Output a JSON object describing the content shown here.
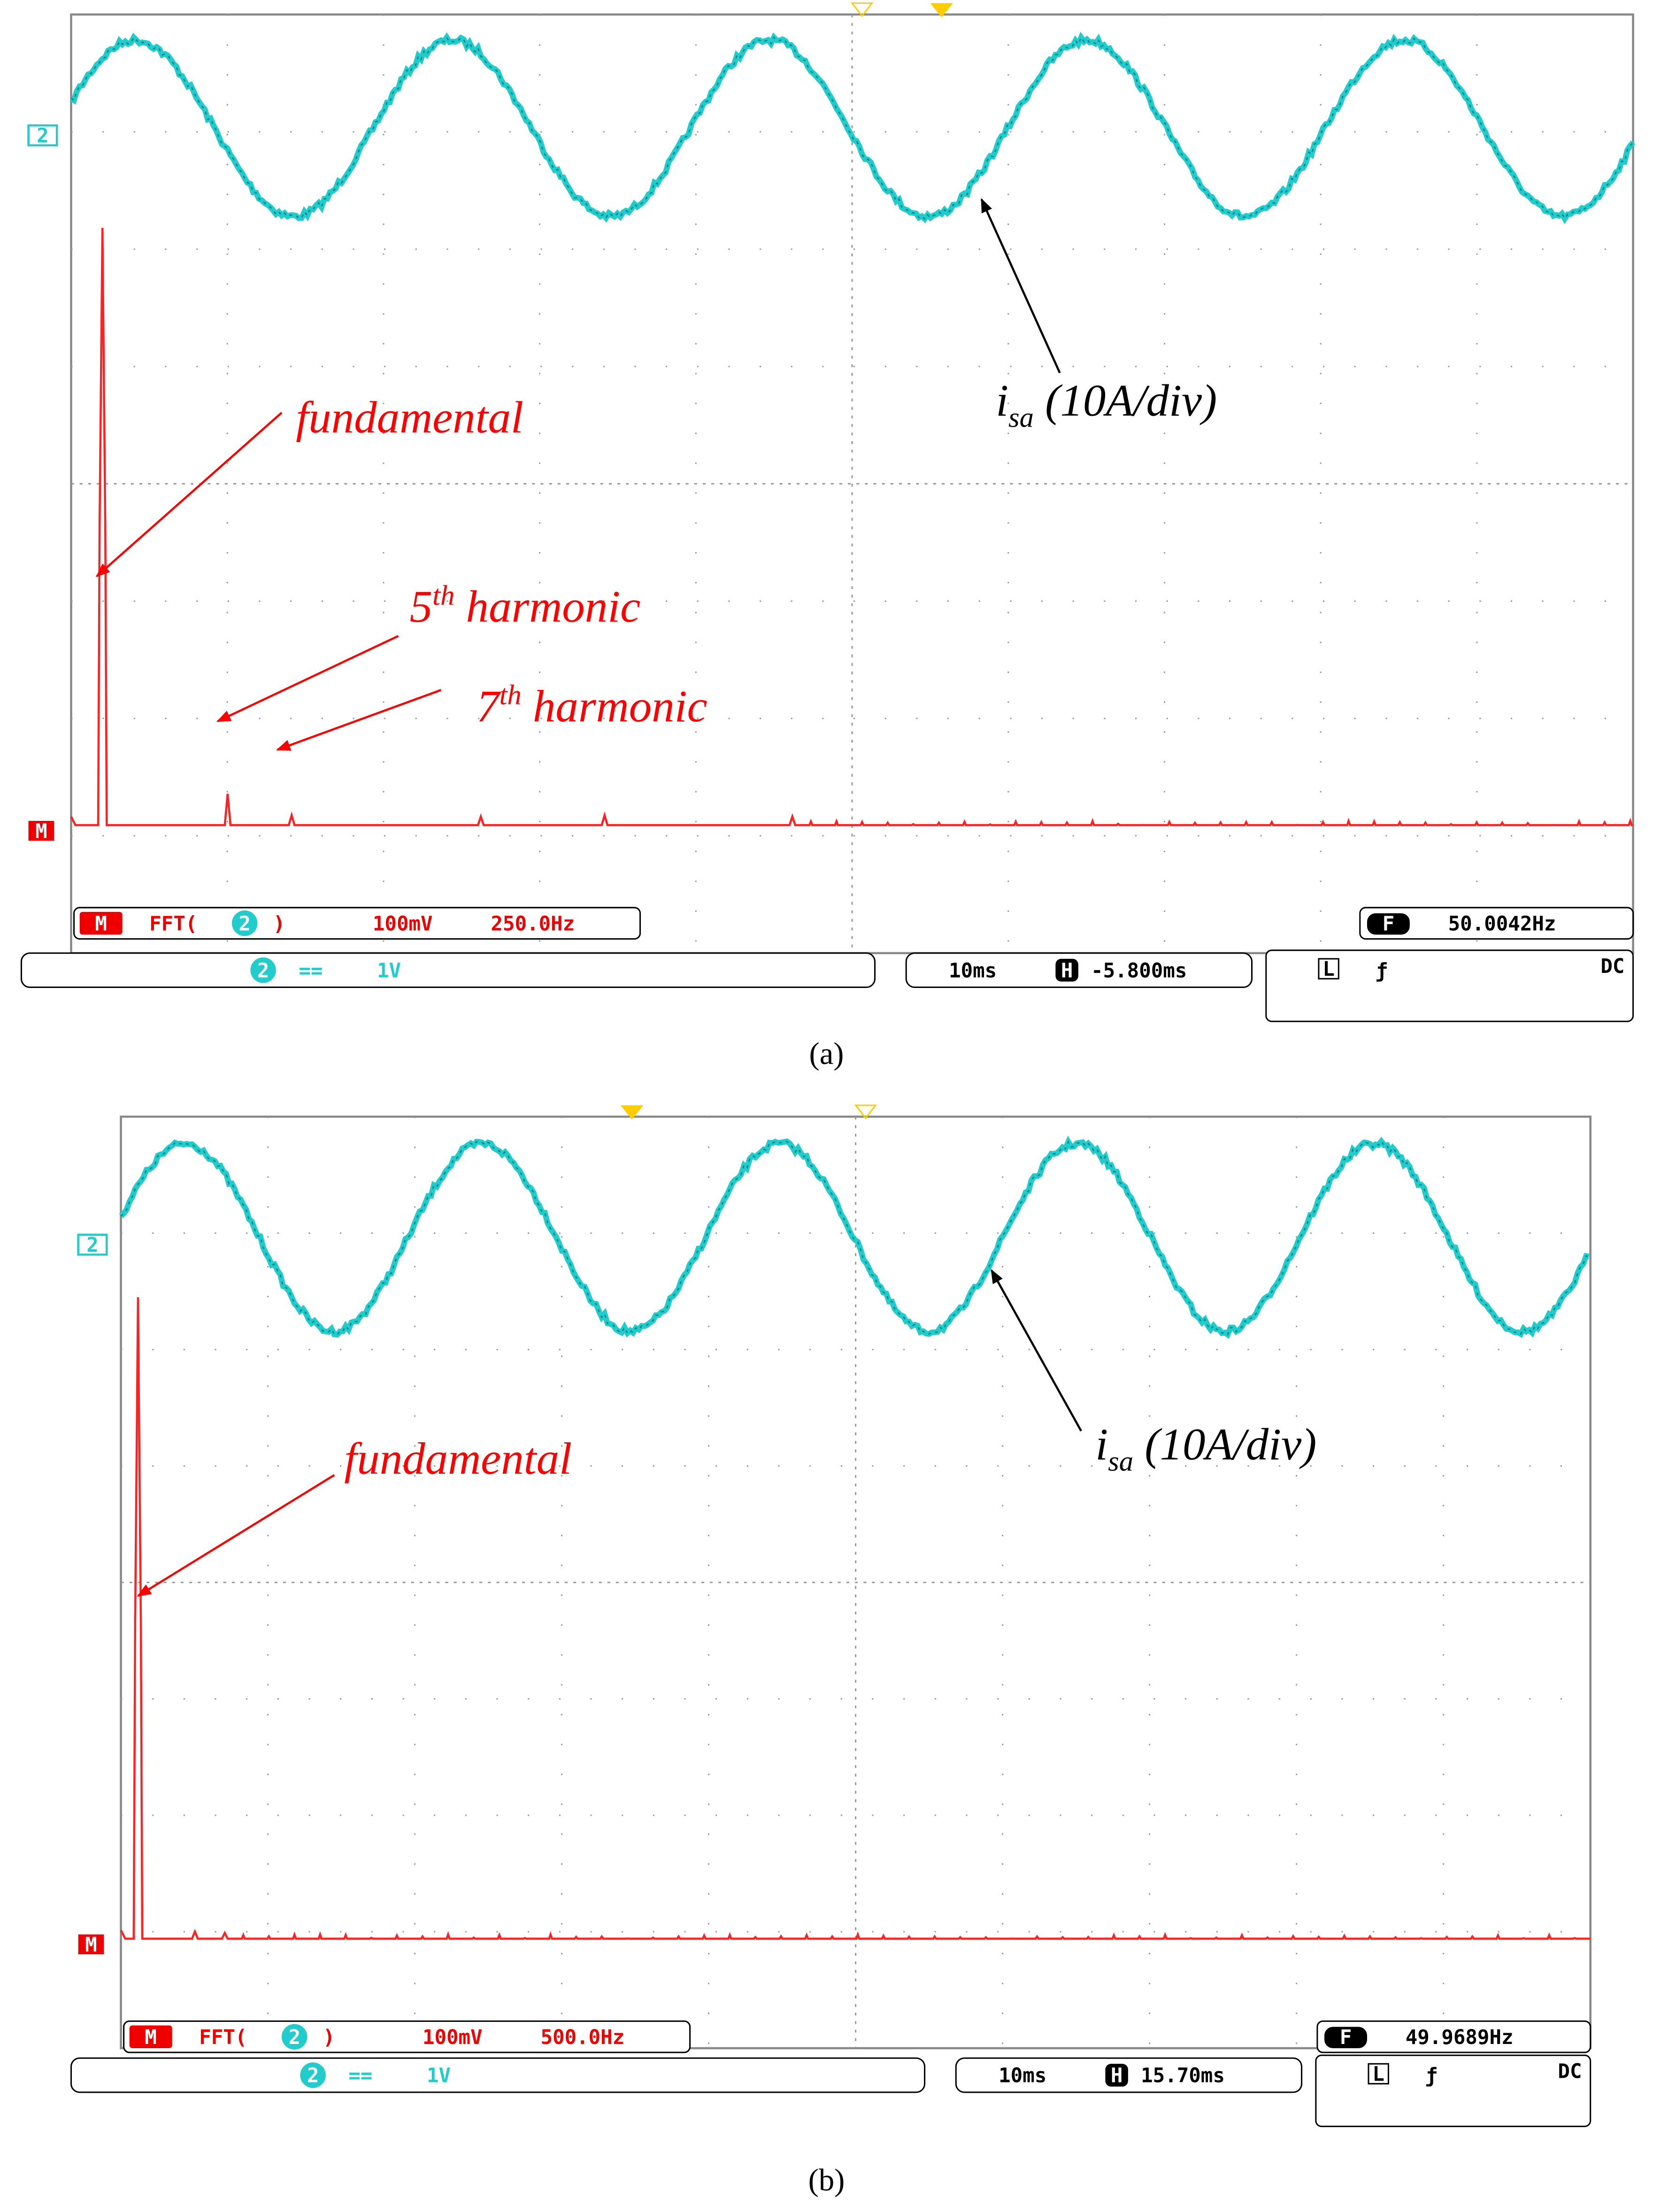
{
  "panels": [
    {
      "caption": "(a)",
      "channel_marker": "2",
      "math_marker": "M",
      "fundamental": "fundamental",
      "harmonic5": {
        "number": "5",
        "suffix": "th",
        "text": " harmonic"
      },
      "harmonic7": {
        "number": "7",
        "suffix": "th",
        "text": " harmonic"
      },
      "current_label": {
        "symbol": "i",
        "subscript": "sa",
        "scale": " (10A/div)"
      },
      "status": {
        "math_badge": "M",
        "fft": "FFT(",
        "fft_channel": "2",
        "fft_close": ")",
        "scale": "100mV",
        "span": "250.0Hz",
        "freq_badge": "F",
        "frequency": "50.0042Hz",
        "channel": "2",
        "coupling_symbol": "==",
        "volts": "1V",
        "timebase": "10ms",
        "h_badge": "H",
        "position": "-5.800ms",
        "trigger_badge": "L",
        "slope": "ƒ",
        "coupling": "DC"
      }
    },
    {
      "caption": "(b)",
      "channel_marker": "2",
      "math_marker": "M",
      "fundamental": "fundamental",
      "current_label": {
        "symbol": "i",
        "subscript": "sa",
        "scale": " (10A/div)"
      },
      "status": {
        "math_badge": "M",
        "fft": "FFT(",
        "fft_channel": "2",
        "fft_close": ")",
        "scale": "100mV",
        "span": "500.0Hz",
        "freq_badge": "F",
        "frequency": "49.9689Hz",
        "channel": "2",
        "coupling_symbol": "==",
        "volts": "1V",
        "timebase": "10ms",
        "h_badge": "H",
        "position": "15.70ms",
        "trigger_badge": "L",
        "slope": "ƒ",
        "coupling": "DC"
      }
    }
  ]
}
